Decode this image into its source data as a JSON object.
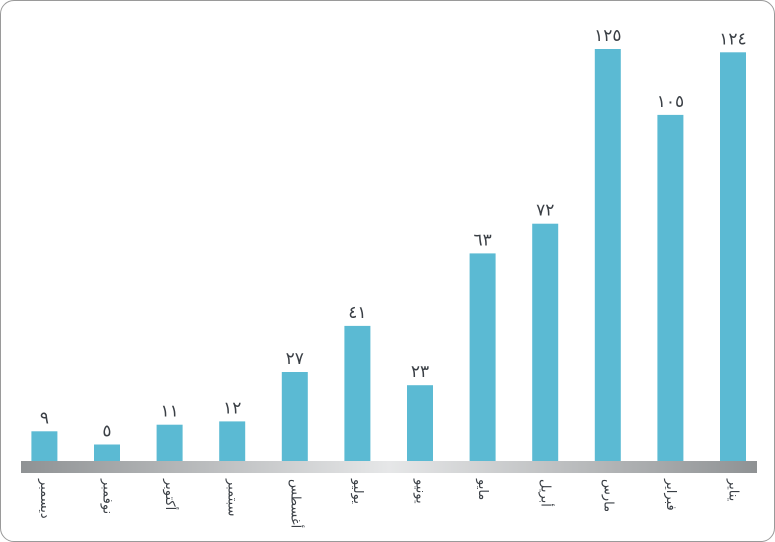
{
  "chart_data": {
    "type": "bar",
    "direction": "rtl",
    "categories": [
      "يناير",
      "فبراير",
      "مارس",
      "أبريل",
      "مايو",
      "يونيو",
      "يوليو",
      "أغسطس",
      "سبتمبر",
      "أكتوبر",
      "نوفمبر",
      "ديسمبر"
    ],
    "values": [
      124,
      105,
      125,
      72,
      63,
      23,
      41,
      27,
      12,
      11,
      5,
      9
    ],
    "value_labels": [
      "١٢٤",
      "١٠٥",
      "١٢٥",
      "٧٢",
      "٦٣",
      "٢٣",
      "٤١",
      "٢٧",
      "١٢",
      "١١",
      "٥",
      "٩"
    ],
    "ylim": [
      0,
      125
    ],
    "title": "",
    "xlabel": "",
    "ylabel": "",
    "grid": false,
    "legend": "none",
    "colors": {
      "bar": "#5bbad3",
      "baseline_dark": "#8f9294",
      "baseline_light": "#e6e7e8",
      "text": "#3a3f45"
    }
  }
}
